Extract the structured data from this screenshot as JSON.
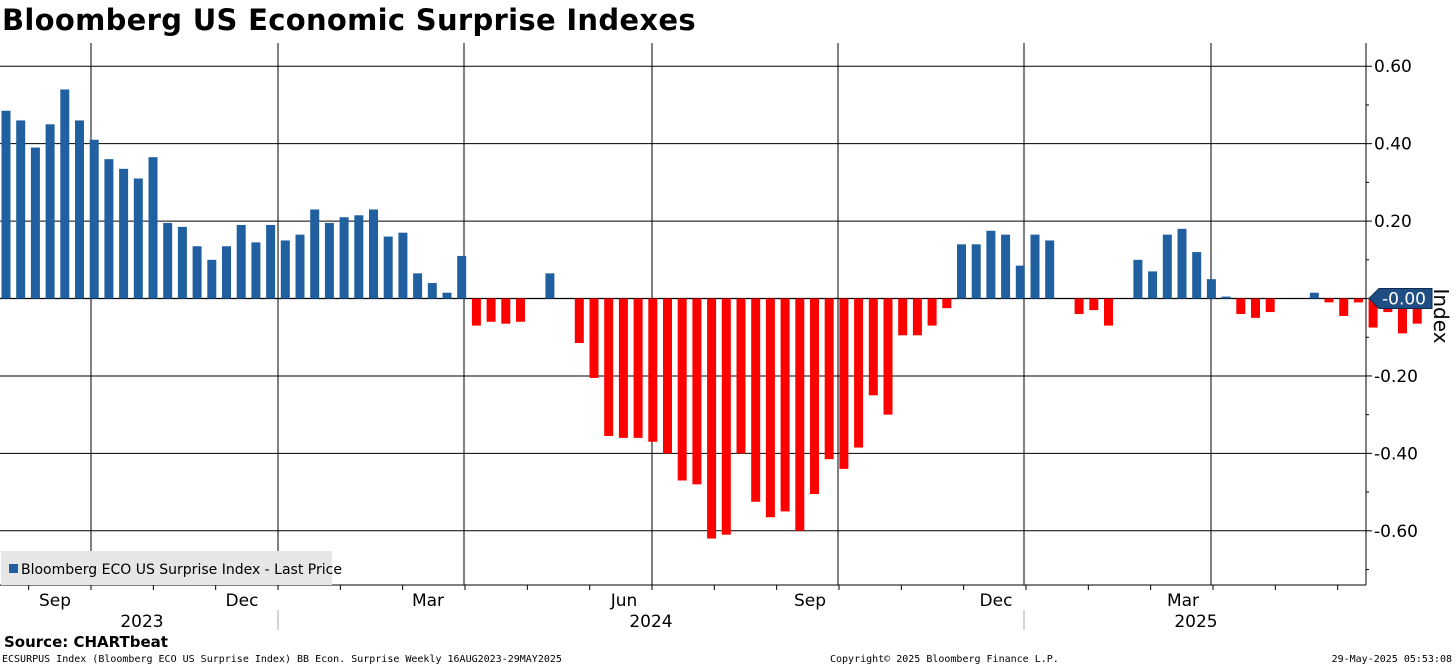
{
  "chart_data": {
    "type": "bar",
    "title": "Bloomberg US Economic Surprise Indexes",
    "ylabel": "Index",
    "ylim": [
      -0.74,
      0.66
    ],
    "yticks": [
      0.6,
      0.4,
      0.2,
      0.0,
      -0.2,
      -0.4,
      -0.6
    ],
    "ytick_labels": [
      "0.60",
      "0.40",
      "0.20",
      "",
      "-0.20",
      "-0.40",
      "-0.60"
    ],
    "grid": true,
    "legend": {
      "position": "bottom-left",
      "entries": [
        "Bloomberg ECO US Surprise Index - Last Price"
      ]
    },
    "last_price_label": "-0.00",
    "positive_color": "#2060a0",
    "negative_color": "#ff0000",
    "month_labels": [
      "Sep",
      "Dec",
      "Mar",
      "Jun",
      "Sep",
      "Dec",
      "Mar"
    ],
    "year_labels": [
      "2023",
      "2024",
      "2025"
    ],
    "frequency": "Weekly",
    "date_range": "16AUG2023-29MAY2025",
    "values": [
      0.485,
      0.46,
      0.39,
      0.45,
      0.54,
      0.46,
      0.41,
      0.36,
      0.335,
      0.31,
      0.365,
      0.195,
      0.185,
      0.135,
      0.1,
      0.135,
      0.19,
      0.145,
      0.19,
      0.15,
      0.165,
      0.23,
      0.195,
      0.21,
      0.215,
      0.23,
      0.16,
      0.17,
      0.065,
      0.04,
      0.015,
      0.11,
      -0.07,
      -0.06,
      -0.065,
      -0.06,
      0.0,
      0.065,
      0.0,
      -0.115,
      -0.205,
      -0.355,
      -0.36,
      -0.36,
      -0.37,
      -0.4,
      -0.47,
      -0.48,
      -0.62,
      -0.61,
      -0.4,
      -0.525,
      -0.565,
      -0.55,
      -0.6,
      -0.505,
      -0.415,
      -0.44,
      -0.385,
      -0.25,
      -0.3,
      -0.095,
      -0.095,
      -0.07,
      -0.025,
      0.14,
      0.14,
      0.175,
      0.165,
      0.085,
      0.165,
      0.15,
      0.0,
      -0.04,
      -0.03,
      -0.07,
      0.0,
      0.1,
      0.07,
      0.165,
      0.18,
      0.12,
      0.05,
      0.005,
      -0.04,
      -0.05,
      -0.035,
      0.0,
      0.0,
      0.015,
      -0.01,
      -0.045,
      -0.01,
      -0.075,
      -0.035,
      -0.09,
      -0.065,
      0.0
    ]
  },
  "source": "Source: CHARTbeat",
  "footer": {
    "left": "ECSURPUS Index (Bloomberg ECO US Surprise Index) BB Econ. Surprise  Weekly 16AUG2023-29MAY2025",
    "center": "Copyright© 2025 Bloomberg Finance L.P.",
    "right": "29-May-2025 05:53:08"
  }
}
